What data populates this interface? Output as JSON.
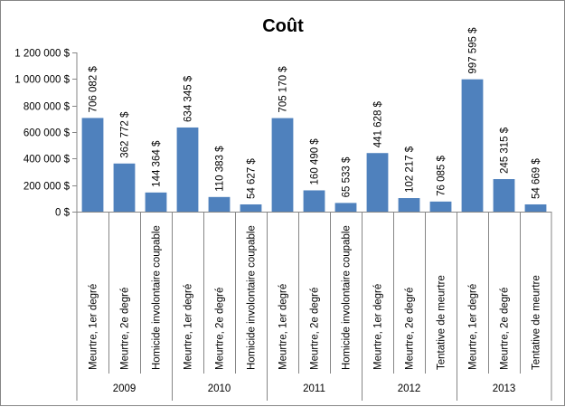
{
  "chart_data": {
    "type": "bar",
    "title": "Coût",
    "xlabel": "",
    "ylabel": "",
    "ylim": [
      0,
      1200000
    ],
    "y_ticks": [
      0,
      200000,
      400000,
      600000,
      800000,
      1000000,
      1200000
    ],
    "y_tick_labels": [
      "0 $",
      "200 000 $",
      "400 000 $",
      "600 000 $",
      "800 000 $",
      "1 000 000 $",
      "1 200 000 $"
    ],
    "grid": false,
    "legend": "none",
    "bar_color": "#4F81BD",
    "groups": [
      {
        "label": "2009",
        "items": [
          {
            "category": "Meurtre, 1er degré",
            "value": 706082,
            "label": "706 082 $"
          },
          {
            "category": "Meurtre, 2e degré",
            "value": 362772,
            "label": "362 772 $"
          },
          {
            "category": "Homicide involontaire coupable",
            "value": 144364,
            "label": "144 364 $"
          }
        ]
      },
      {
        "label": "2010",
        "items": [
          {
            "category": "Meurtre, 1er degré",
            "value": 634345,
            "label": "634 345 $"
          },
          {
            "category": "Meurtre, 2e degré",
            "value": 110383,
            "label": "110 383 $"
          },
          {
            "category": "Homicide involontaire coupable",
            "value": 54627,
            "label": "54 627 $"
          }
        ]
      },
      {
        "label": "2011",
        "items": [
          {
            "category": "Meurtre, 1er degré",
            "value": 705170,
            "label": "705 170 $"
          },
          {
            "category": "Meurtre, 2e degré",
            "value": 160490,
            "label": "160 490 $"
          },
          {
            "category": "Homicide involontaire coupable",
            "value": 65533,
            "label": "65 533 $"
          }
        ]
      },
      {
        "label": "2012",
        "items": [
          {
            "category": "Meurtre, 1er degré",
            "value": 441628,
            "label": "441 628 $"
          },
          {
            "category": "Meurtre, 2e degré",
            "value": 102217,
            "label": "102 217 $"
          },
          {
            "category": "Tentative de meurtre",
            "value": 76085,
            "label": "76 085 $"
          }
        ]
      },
      {
        "label": "2013",
        "items": [
          {
            "category": "Meurtre, 1er degré",
            "value": 997595,
            "label": "997 595 $"
          },
          {
            "category": "Meurtre, 2e degré",
            "value": 245315,
            "label": "245 315 $"
          },
          {
            "category": "Tentative de meurtre",
            "value": 54669,
            "label": "54 669 $"
          }
        ]
      }
    ]
  }
}
